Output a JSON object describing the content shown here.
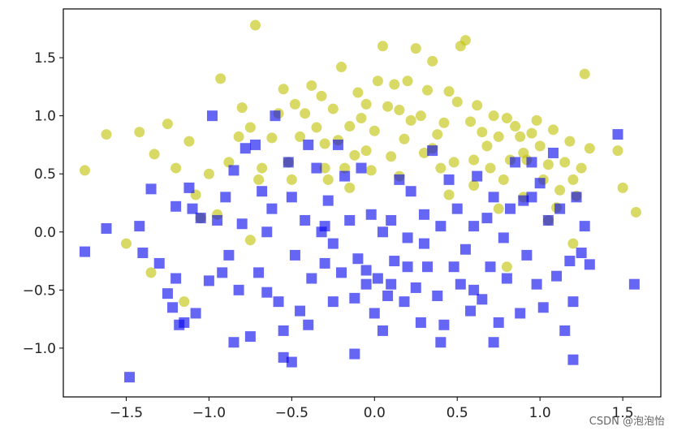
{
  "chart_data": {
    "type": "scatter",
    "title": "",
    "xlabel": "",
    "ylabel": "",
    "xlim": [
      -1.88,
      1.73
    ],
    "ylim": [
      -1.42,
      1.92
    ],
    "x_ticks": [
      "-1.5",
      "-1.0",
      "-0.5",
      "0.0",
      "0.5",
      "1.0",
      "1.5"
    ],
    "y_ticks": [
      "-1.0",
      "-0.5",
      "0.0",
      "0.5",
      "1.0",
      "1.5"
    ],
    "grid": false,
    "series": [
      {
        "marker": "circle",
        "color": "#bfbf00",
        "points": [
          [
            -1.75,
            0.53
          ],
          [
            -1.62,
            0.84
          ],
          [
            -1.42,
            0.86
          ],
          [
            -1.33,
            0.67
          ],
          [
            -1.25,
            0.93
          ],
          [
            -1.2,
            0.55
          ],
          [
            -1.12,
            0.78
          ],
          [
            -1.08,
            0.32
          ],
          [
            -1.05,
            0.12
          ],
          [
            -1.0,
            0.5
          ],
          [
            -0.93,
            1.32
          ],
          [
            -0.88,
            0.6
          ],
          [
            -0.82,
            0.82
          ],
          [
            -0.8,
            1.07
          ],
          [
            -0.75,
            0.9
          ],
          [
            -0.72,
            1.78
          ],
          [
            -0.68,
            0.55
          ],
          [
            -0.62,
            0.81
          ],
          [
            -0.58,
            1.02
          ],
          [
            -0.55,
            1.23
          ],
          [
            -0.52,
            0.6
          ],
          [
            -0.5,
            0.45
          ],
          [
            -0.48,
            1.1
          ],
          [
            -0.45,
            0.82
          ],
          [
            -0.42,
            1.02
          ],
          [
            -0.38,
            1.26
          ],
          [
            -0.35,
            0.9
          ],
          [
            -0.32,
            1.17
          ],
          [
            -0.3,
            0.76
          ],
          [
            -0.28,
            0.45
          ],
          [
            -0.25,
            1.06
          ],
          [
            -0.22,
            0.79
          ],
          [
            -0.2,
            1.42
          ],
          [
            -0.18,
            0.55
          ],
          [
            -0.15,
            0.91
          ],
          [
            -0.12,
            0.66
          ],
          [
            -0.1,
            1.2
          ],
          [
            -0.08,
            0.98
          ],
          [
            -0.05,
            1.1
          ],
          [
            -0.02,
            0.53
          ],
          [
            0.0,
            0.87
          ],
          [
            0.02,
            1.3
          ],
          [
            0.05,
            1.6
          ],
          [
            0.08,
            1.08
          ],
          [
            0.1,
            0.65
          ],
          [
            0.12,
            1.27
          ],
          [
            0.15,
            1.05
          ],
          [
            0.18,
            0.8
          ],
          [
            0.2,
            1.3
          ],
          [
            0.22,
            0.96
          ],
          [
            0.25,
            1.58
          ],
          [
            0.28,
            1.0
          ],
          [
            0.3,
            0.68
          ],
          [
            0.32,
            1.22
          ],
          [
            0.35,
            1.47
          ],
          [
            0.38,
            0.84
          ],
          [
            0.4,
            0.55
          ],
          [
            0.42,
            0.94
          ],
          [
            0.45,
            1.21
          ],
          [
            0.48,
            0.6
          ],
          [
            0.5,
            1.12
          ],
          [
            0.52,
            1.6
          ],
          [
            0.55,
            1.65
          ],
          [
            0.58,
            0.95
          ],
          [
            0.6,
            0.62
          ],
          [
            0.62,
            1.09
          ],
          [
            0.65,
            0.86
          ],
          [
            0.68,
            0.74
          ],
          [
            0.7,
            0.55
          ],
          [
            0.72,
            1.0
          ],
          [
            0.75,
            0.82
          ],
          [
            0.78,
            0.45
          ],
          [
            0.8,
            0.98
          ],
          [
            0.82,
            0.62
          ],
          [
            0.85,
            0.91
          ],
          [
            0.88,
            0.82
          ],
          [
            0.9,
            0.68
          ],
          [
            0.92,
            0.62
          ],
          [
            0.95,
            0.85
          ],
          [
            0.98,
            0.96
          ],
          [
            1.0,
            0.74
          ],
          [
            1.02,
            0.45
          ],
          [
            1.05,
            0.58
          ],
          [
            1.08,
            0.88
          ],
          [
            1.1,
            0.21
          ],
          [
            1.12,
            0.36
          ],
          [
            1.15,
            0.6
          ],
          [
            1.18,
            0.78
          ],
          [
            1.2,
            0.45
          ],
          [
            1.22,
            0.31
          ],
          [
            1.25,
            0.55
          ],
          [
            1.27,
            1.36
          ],
          [
            1.3,
            0.72
          ],
          [
            1.47,
            0.7
          ],
          [
            1.5,
            0.38
          ],
          [
            1.58,
            0.17
          ],
          [
            -0.05,
            0.7
          ],
          [
            0.35,
            0.72
          ],
          [
            -0.3,
            0.55
          ],
          [
            0.15,
            0.48
          ],
          [
            0.6,
            0.4
          ],
          [
            -0.7,
            0.45
          ],
          [
            0.9,
            0.3
          ],
          [
            1.05,
            0.1
          ],
          [
            0.75,
            0.2
          ],
          [
            -0.15,
            0.38
          ],
          [
            0.45,
            0.32
          ],
          [
            -0.95,
            0.15
          ],
          [
            -0.75,
            -0.07
          ],
          [
            -1.5,
            -0.1
          ],
          [
            -1.35,
            -0.35
          ],
          [
            -1.15,
            -0.6
          ],
          [
            0.8,
            -0.3
          ],
          [
            1.2,
            -0.1
          ]
        ]
      },
      {
        "marker": "square",
        "color": "#0000ee",
        "points": [
          [
            -1.75,
            -0.17
          ],
          [
            -1.62,
            0.03
          ],
          [
            -1.48,
            -1.25
          ],
          [
            -1.42,
            0.05
          ],
          [
            -1.4,
            -0.18
          ],
          [
            -1.35,
            0.37
          ],
          [
            -1.3,
            -0.27
          ],
          [
            -1.25,
            -0.53
          ],
          [
            -1.22,
            -0.65
          ],
          [
            -1.2,
            0.22
          ],
          [
            -1.18,
            -0.8
          ],
          [
            -1.15,
            -0.78
          ],
          [
            -1.12,
            0.38
          ],
          [
            -1.1,
            0.2
          ],
          [
            -1.08,
            -0.7
          ],
          [
            -1.05,
            0.12
          ],
          [
            -1.0,
            -0.42
          ],
          [
            -0.98,
            1.0
          ],
          [
            -0.95,
            0.1
          ],
          [
            -0.92,
            -0.35
          ],
          [
            -0.9,
            0.3
          ],
          [
            -0.88,
            -0.2
          ],
          [
            -0.85,
            0.53
          ],
          [
            -0.82,
            -0.5
          ],
          [
            -0.8,
            0.07
          ],
          [
            -0.78,
            0.72
          ],
          [
            -0.75,
            -0.9
          ],
          [
            -0.72,
            0.75
          ],
          [
            -0.7,
            -0.35
          ],
          [
            -0.68,
            0.35
          ],
          [
            -0.65,
            -0.52
          ],
          [
            -0.62,
            0.2
          ],
          [
            -0.6,
            1.0
          ],
          [
            -0.58,
            -0.6
          ],
          [
            -0.55,
            -1.08
          ],
          [
            -0.52,
            0.6
          ],
          [
            -0.5,
            0.3
          ],
          [
            -0.48,
            -0.2
          ],
          [
            -0.45,
            -0.68
          ],
          [
            -0.42,
            0.1
          ],
          [
            -0.4,
            0.75
          ],
          [
            -0.38,
            -0.4
          ],
          [
            -0.35,
            0.55
          ],
          [
            -0.32,
            0.0
          ],
          [
            -0.3,
            -0.27
          ],
          [
            -0.28,
            0.27
          ],
          [
            -0.25,
            -0.6
          ],
          [
            -0.22,
            0.75
          ],
          [
            -0.2,
            -0.35
          ],
          [
            -0.18,
            0.48
          ],
          [
            -0.15,
            0.1
          ],
          [
            -0.12,
            -0.57
          ],
          [
            -0.1,
            -0.23
          ],
          [
            -0.08,
            0.55
          ],
          [
            -0.05,
            -0.33
          ],
          [
            -0.02,
            0.15
          ],
          [
            0.0,
            -0.7
          ],
          [
            0.02,
            -0.4
          ],
          [
            0.05,
            -0.85
          ],
          [
            0.08,
            -0.55
          ],
          [
            0.1,
            0.1
          ],
          [
            0.12,
            -0.25
          ],
          [
            0.15,
            0.45
          ],
          [
            0.18,
            -0.6
          ],
          [
            0.2,
            -0.05
          ],
          [
            0.22,
            0.35
          ],
          [
            0.25,
            -0.48
          ],
          [
            0.28,
            -0.78
          ],
          [
            0.3,
            0.15
          ],
          [
            0.32,
            -0.3
          ],
          [
            0.35,
            0.7
          ],
          [
            0.38,
            -0.55
          ],
          [
            0.4,
            0.05
          ],
          [
            0.42,
            -0.8
          ],
          [
            0.45,
            0.45
          ],
          [
            0.48,
            -0.3
          ],
          [
            0.5,
            0.2
          ],
          [
            0.52,
            -0.45
          ],
          [
            0.55,
            -0.15
          ],
          [
            0.58,
            -0.68
          ],
          [
            0.6,
            0.05
          ],
          [
            0.62,
            0.48
          ],
          [
            0.65,
            -0.58
          ],
          [
            0.68,
            0.12
          ],
          [
            0.7,
            -0.3
          ],
          [
            0.72,
            0.3
          ],
          [
            0.75,
            -0.78
          ],
          [
            0.78,
            -0.05
          ],
          [
            0.8,
            -0.4
          ],
          [
            0.82,
            0.2
          ],
          [
            0.85,
            0.6
          ],
          [
            0.88,
            -0.7
          ],
          [
            0.9,
            0.27
          ],
          [
            0.92,
            -0.2
          ],
          [
            0.95,
            0.3
          ],
          [
            0.98,
            -0.45
          ],
          [
            1.0,
            0.42
          ],
          [
            1.02,
            -0.65
          ],
          [
            1.05,
            0.1
          ],
          [
            1.08,
            0.68
          ],
          [
            1.1,
            -0.38
          ],
          [
            1.12,
            0.2
          ],
          [
            1.15,
            -0.85
          ],
          [
            1.18,
            -0.25
          ],
          [
            1.2,
            -1.1
          ],
          [
            1.22,
            0.3
          ],
          [
            1.25,
            -0.18
          ],
          [
            1.27,
            0.05
          ],
          [
            1.3,
            -0.28
          ],
          [
            1.47,
            0.84
          ],
          [
            1.57,
            -0.45
          ],
          [
            -0.5,
            -1.12
          ],
          [
            -0.55,
            -0.85
          ],
          [
            -0.12,
            -1.05
          ],
          [
            0.4,
            -0.95
          ],
          [
            -1.2,
            -0.4
          ],
          [
            -0.85,
            -0.95
          ],
          [
            0.1,
            -0.45
          ],
          [
            -0.25,
            -0.1
          ],
          [
            0.3,
            -0.1
          ],
          [
            0.6,
            -0.5
          ],
          [
            0.95,
            0.6
          ],
          [
            -0.65,
            0.0
          ],
          [
            -0.4,
            -0.8
          ],
          [
            0.05,
            0.0
          ],
          [
            -0.05,
            -0.45
          ],
          [
            0.72,
            -0.95
          ],
          [
            1.2,
            -0.6
          ],
          [
            0.2,
            -0.3
          ],
          [
            -0.3,
            0.05
          ]
        ]
      }
    ]
  },
  "watermark": "CSDN @泡泡怡"
}
